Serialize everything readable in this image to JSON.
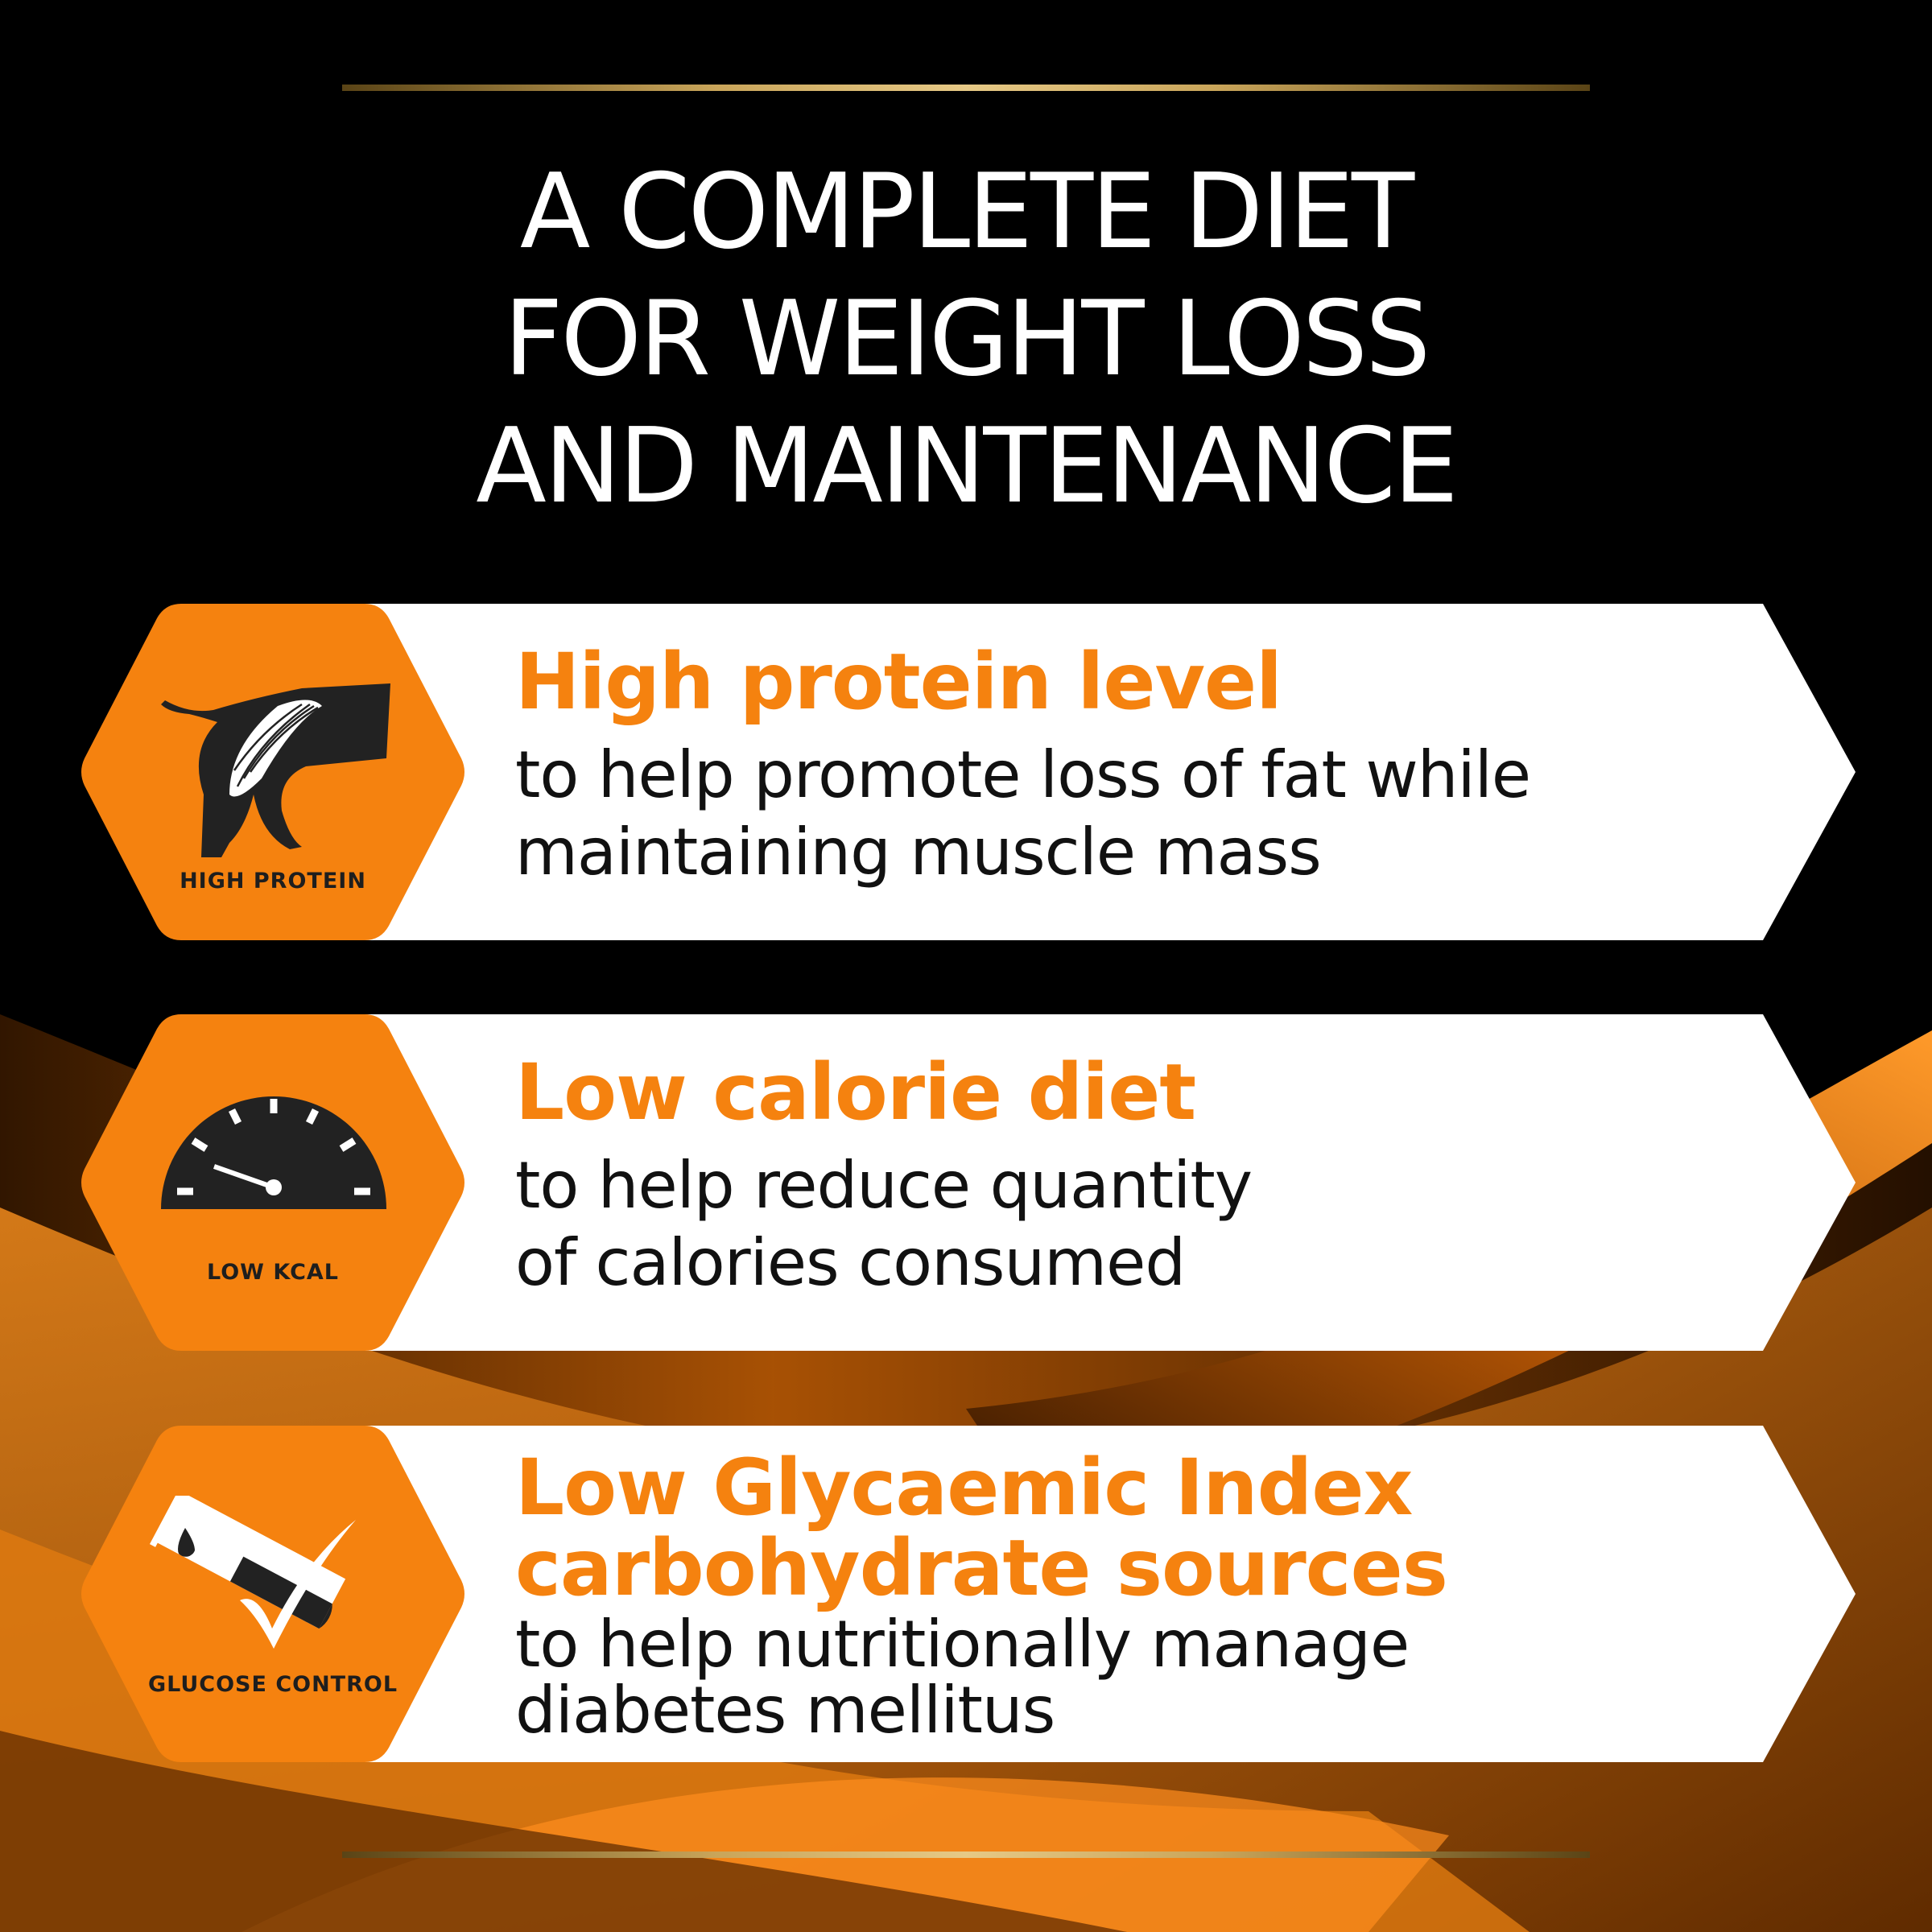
{
  "title": {
    "lines": [
      "A COMPLETE DIET",
      "FOR WEIGHT LOSS",
      "AND MAINTENANCE"
    ]
  },
  "colors": {
    "accent": "#f5820f",
    "background": "#000000",
    "gold": "#c9a55a",
    "text": "#111111"
  },
  "benefits": [
    {
      "icon": "dog-muscle-icon",
      "badge": "HIGH PROTEIN",
      "heading": [
        "High protein level"
      ],
      "body": [
        "to help promote loss of fat while",
        "maintaining muscle mass"
      ]
    },
    {
      "icon": "speedometer-icon",
      "badge": "LOW KCAL",
      "heading": [
        "Low calorie diet"
      ],
      "body": [
        "to help reduce quantity",
        "of calories consumed"
      ]
    },
    {
      "icon": "glucose-test-tube-check-icon",
      "badge": "GLUCOSE CONTROL",
      "heading": [
        "Low Glycaemic Index",
        "carbohydrate sources"
      ],
      "body": [
        "to help nutritionally manage",
        "diabetes mellitus"
      ]
    }
  ]
}
